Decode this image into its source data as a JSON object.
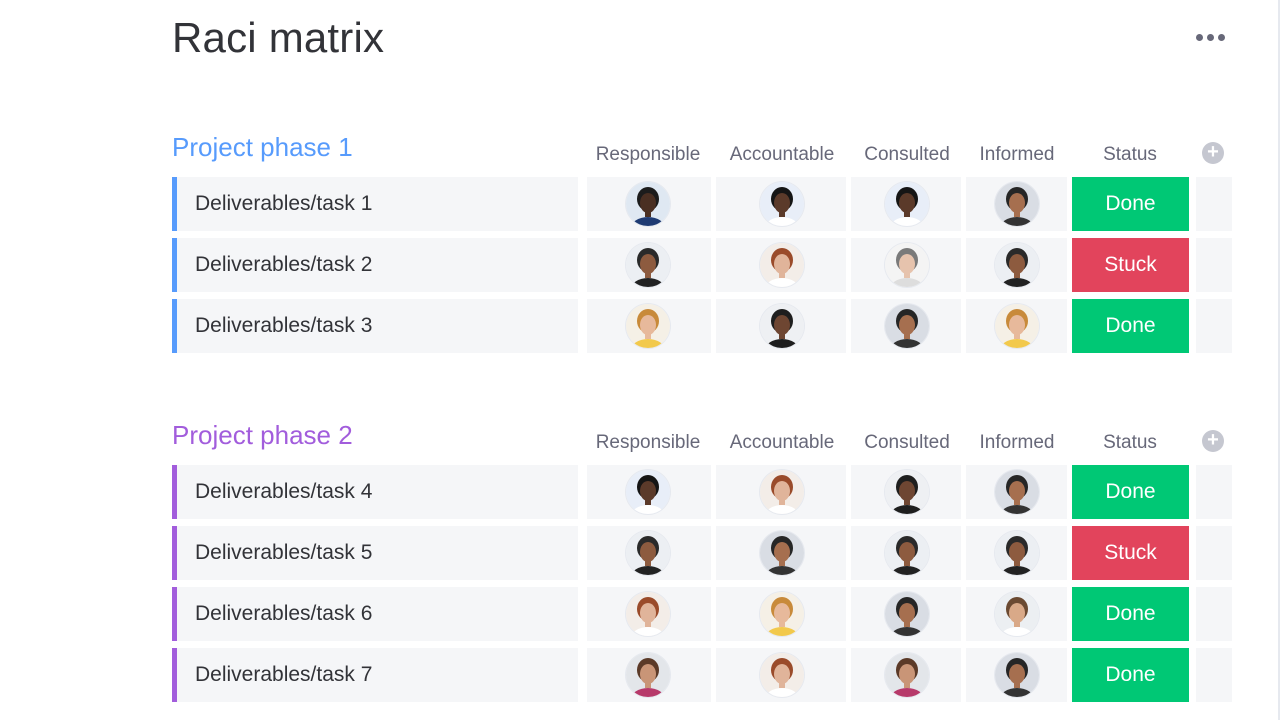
{
  "title": "Raci matrix",
  "columns": [
    "Responsible",
    "Accountable",
    "Consulted",
    "Informed",
    "Status"
  ],
  "groups": [
    {
      "name": "Project phase 1",
      "color": "#579bfc",
      "rows": [
        {
          "task": "Deliverables/task 1",
          "people": [
            "man-dark-glasses",
            "woman-curly-dark",
            "woman-curly-dark",
            "woman-long-dark-hair"
          ],
          "status": "Done"
        },
        {
          "task": "Deliverables/task 2",
          "people": [
            "man-beard",
            "woman-red-hair",
            "woman-grey-short-hair",
            "man-beard"
          ],
          "status": "Stuck"
        },
        {
          "task": "Deliverables/task 3",
          "people": [
            "woman-blonde",
            "man-beard-bald",
            "woman-long-dark-hair",
            "woman-blonde"
          ],
          "status": "Done"
        }
      ]
    },
    {
      "name": "Project phase 2",
      "color": "#a25ddc",
      "rows": [
        {
          "task": "Deliverables/task 4",
          "people": [
            "woman-curly-dark",
            "woman-red-hair",
            "man-beard-bald",
            "woman-long-dark-hair"
          ],
          "status": "Done"
        },
        {
          "task": "Deliverables/task 5",
          "people": [
            "man-beard",
            "woman-long-dark-hair",
            "man-beard",
            "man-beard"
          ],
          "status": "Stuck"
        },
        {
          "task": "Deliverables/task 6",
          "people": [
            "woman-red-hair",
            "woman-blonde",
            "woman-long-dark-hair",
            "man-light-beard"
          ],
          "status": "Done"
        },
        {
          "task": "Deliverables/task 7",
          "people": [
            "man-glasses-beard",
            "woman-red-hair",
            "man-glasses-beard",
            "woman-long-dark-hair"
          ],
          "status": "Done"
        }
      ]
    }
  ],
  "status_colors": {
    "Done": "#00c875",
    "Stuck": "#e2445c"
  },
  "icons": {
    "more": "ellipsis-icon",
    "add_column": "plus-circle-icon"
  }
}
